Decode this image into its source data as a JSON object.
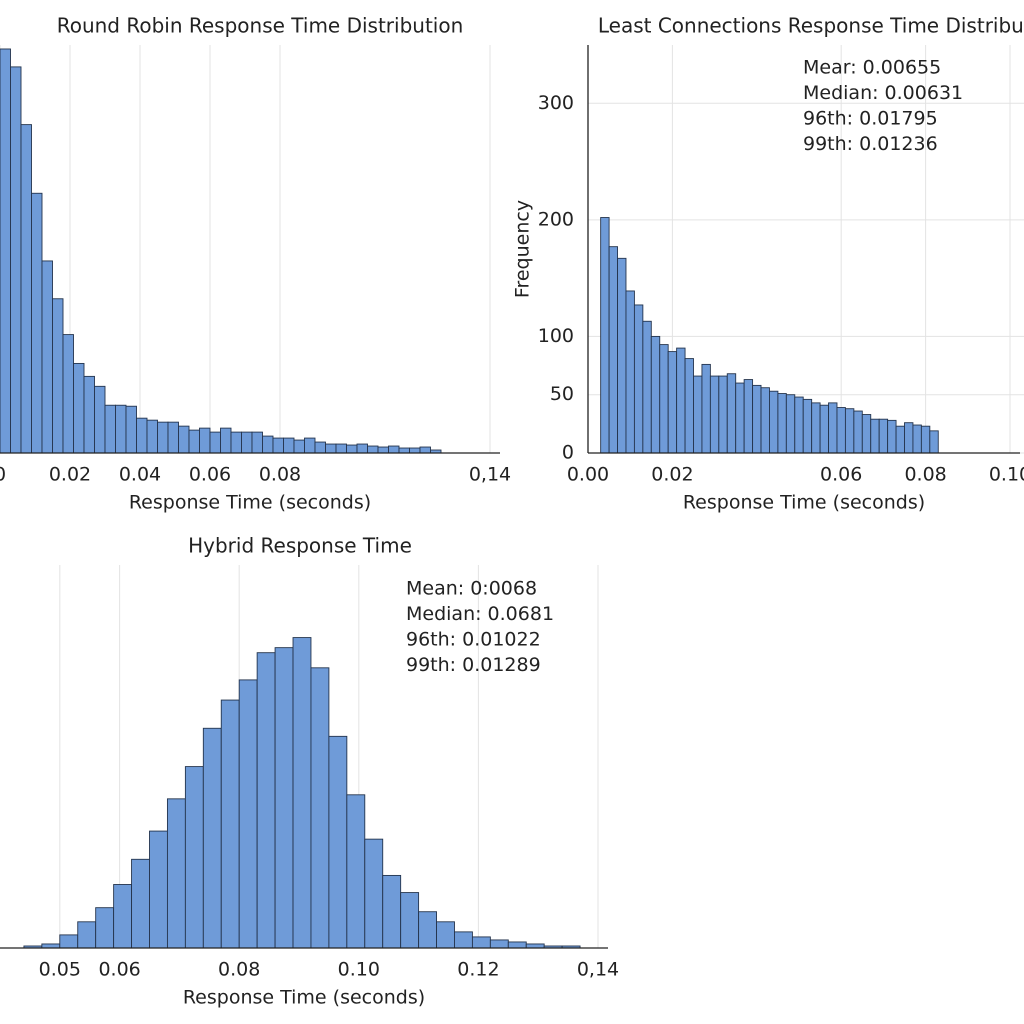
{
  "chart_data": [
    {
      "type": "histogram",
      "title": "Round Robin Response Time Distribution",
      "xlabel": "Response Time (seconds)",
      "bins": [
        0,
        0.003,
        0.006,
        0.009,
        0.012,
        0.015,
        0.018,
        0.021,
        0.024,
        0.027,
        0.03,
        0.033,
        0.036,
        0.039,
        0.042,
        0.045,
        0.048,
        0.051,
        0.054,
        0.057,
        0.06,
        0.063,
        0.066,
        0.069,
        0.072,
        0.075,
        0.078,
        0.081,
        0.084,
        0.087,
        0.09,
        0.093,
        0.096,
        0.099,
        0.102,
        0.105,
        0.108,
        0.111,
        0.114,
        0.117,
        0.12,
        0.123,
        0.126
      ],
      "counts": [
        406,
        388,
        330,
        261,
        193,
        155,
        119,
        90,
        77,
        67,
        48,
        48,
        47,
        35,
        33,
        31,
        31,
        27,
        23,
        25,
        21,
        25,
        21,
        21,
        21,
        17,
        15,
        15,
        13,
        15,
        11,
        9,
        9,
        8,
        9,
        7,
        6,
        7,
        5,
        5,
        6,
        3
      ],
      "color": "#6f9bd8",
      "xlim": [
        0,
        0.14
      ],
      "ylim": [
        0,
        410
      ],
      "xticks": [
        0,
        0.02,
        0.04,
        0.06,
        0.08,
        {
          "value": 0.14,
          "label": "0,14"
        }
      ],
      "grid": true
    },
    {
      "type": "histogram",
      "title": "Least Connections Response Time Distribution",
      "xlabel": "Response Time (seconds)",
      "ylabel": "Frequency",
      "bins": [
        0.003,
        0.005,
        0.007,
        0.009,
        0.011,
        0.013,
        0.015,
        0.017,
        0.019,
        0.021,
        0.023,
        0.025,
        0.027,
        0.029,
        0.031,
        0.033,
        0.035,
        0.037,
        0.039,
        0.041,
        0.043,
        0.045,
        0.047,
        0.049,
        0.051,
        0.053,
        0.055,
        0.057,
        0.059,
        0.061,
        0.063,
        0.065,
        0.067,
        0.069,
        0.071,
        0.073,
        0.075,
        0.077,
        0.079,
        0.081,
        0.083
      ],
      "counts": [
        202,
        177,
        167,
        139,
        127,
        113,
        100,
        93,
        87,
        90,
        81,
        66,
        76,
        66,
        66,
        68,
        60,
        63,
        58,
        56,
        53,
        51,
        50,
        48,
        46,
        43,
        41,
        43,
        39,
        38,
        36,
        33,
        29,
        29,
        28,
        23,
        26,
        24,
        23,
        19
      ],
      "color": "#6f9bd8",
      "xlim": [
        0,
        0.1
      ],
      "ylim": [
        0,
        350
      ],
      "xticks": [
        {
          "value": 0,
          "label": "0.00"
        },
        0.02,
        0.06,
        0.08,
        {
          "value": 0.1,
          "label": "0.10"
        }
      ],
      "yticks": [
        0,
        50,
        100,
        200,
        300
      ],
      "grid": true,
      "annotations": [
        "Mear: 0.00655",
        "Median: 0.00631",
        "96th: 0.01795",
        "99th: 0.01236"
      ]
    },
    {
      "type": "histogram",
      "title": "Hybrid Response Time",
      "xlabel": "Response Time (seconds)",
      "bins": [
        0.044,
        0.047,
        0.05,
        0.053,
        0.056,
        0.059,
        0.062,
        0.065,
        0.068,
        0.071,
        0.074,
        0.077,
        0.08,
        0.083,
        0.086,
        0.089,
        0.092,
        0.095,
        0.098,
        0.101,
        0.104,
        0.107,
        0.11,
        0.113,
        0.116,
        0.119,
        0.122,
        0.125,
        0.128,
        0.131,
        0.134,
        0.137
      ],
      "counts": [
        2,
        4,
        13,
        26,
        40,
        63,
        88,
        116,
        148,
        180,
        218,
        246,
        266,
        293,
        298,
        308,
        278,
        210,
        152,
        108,
        72,
        55,
        36,
        26,
        16,
        11,
        8,
        6,
        4,
        2,
        2
      ],
      "color": "#6f9bd8",
      "xlim": [
        0.04,
        0.14
      ],
      "ylim": [
        0,
        380
      ],
      "xticks": [
        0.05,
        0.06,
        0.08,
        {
          "value": 0.1,
          "label": "0.10"
        },
        0.12,
        {
          "value": 0.14,
          "label": "0,14"
        }
      ],
      "grid": true,
      "annotations": [
        "Mean: 0:0068",
        "Median: 0.0681",
        "96th: 0.01022",
        "99th: 0.01289"
      ]
    }
  ]
}
